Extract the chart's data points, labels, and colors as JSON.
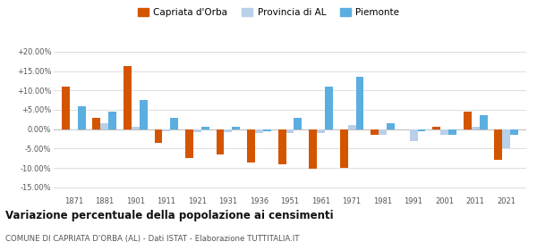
{
  "years": [
    1871,
    1881,
    1901,
    1911,
    1921,
    1931,
    1936,
    1951,
    1961,
    1971,
    1981,
    1991,
    2001,
    2011,
    2021
  ],
  "capriata": [
    11.0,
    3.0,
    16.2,
    -3.5,
    -7.5,
    -6.5,
    -8.5,
    -9.0,
    -10.2,
    -10.0,
    -1.5,
    -0.2,
    0.5,
    4.5,
    -8.0
  ],
  "provincia_al": [
    -0.3,
    1.5,
    0.5,
    -0.5,
    -0.8,
    -0.8,
    -1.0,
    -1.0,
    -1.0,
    1.0,
    -1.5,
    -3.0,
    -1.5,
    0.5,
    -5.0
  ],
  "piemonte": [
    6.0,
    4.5,
    7.5,
    3.0,
    0.7,
    0.7,
    -0.5,
    3.0,
    11.0,
    13.5,
    1.5,
    -0.5,
    -1.5,
    3.5,
    -1.5
  ],
  "capriata_color": "#d45500",
  "provincia_color": "#b8d0e8",
  "piemonte_color": "#5baee0",
  "title": "Variazione percentuale della popolazione ai censimenti",
  "subtitle": "COMUNE DI CAPRIATA D'ORBA (AL) - Dati ISTAT - Elaborazione TUTTITALIA.IT",
  "legend_labels": [
    "Capriata d'Orba",
    "Provincia di AL",
    "Piemonte"
  ],
  "yticks": [
    -15,
    -10,
    -5,
    0,
    5,
    10,
    15,
    20
  ],
  "ylim": [
    -17,
    23
  ],
  "bar_width": 0.26,
  "bg_color": "#ffffff",
  "grid_color": "#dddddd"
}
